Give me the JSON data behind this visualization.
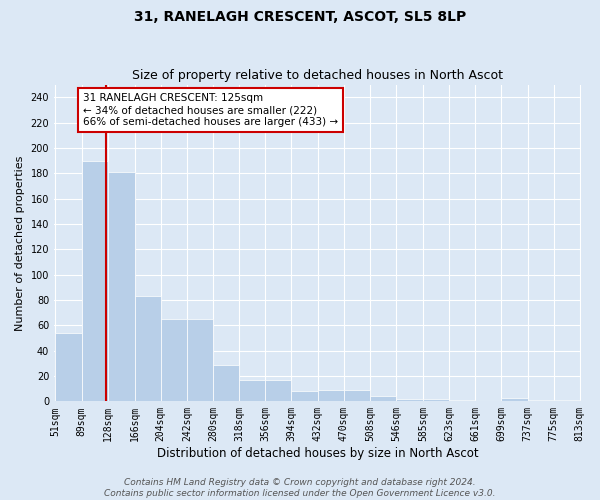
{
  "title": "31, RANELAGH CRESCENT, ASCOT, SL5 8LP",
  "subtitle": "Size of property relative to detached houses in North Ascot",
  "xlabel": "Distribution of detached houses by size in North Ascot",
  "ylabel": "Number of detached properties",
  "bar_values": [
    54,
    190,
    181,
    83,
    65,
    65,
    29,
    17,
    17,
    8,
    9,
    9,
    4,
    2,
    2,
    1,
    0,
    3,
    1,
    1
  ],
  "bar_labels": [
    "51sqm",
    "89sqm",
    "128sqm",
    "166sqm",
    "204sqm",
    "242sqm",
    "280sqm",
    "318sqm",
    "356sqm",
    "394sqm",
    "432sqm",
    "470sqm",
    "508sqm",
    "546sqm",
    "585sqm",
    "623sqm",
    "661sqm",
    "699sqm",
    "737sqm",
    "775sqm",
    "813sqm"
  ],
  "bar_edges": [
    51,
    89,
    128,
    166,
    204,
    242,
    280,
    318,
    356,
    394,
    432,
    470,
    508,
    546,
    585,
    623,
    661,
    699,
    737,
    775,
    813
  ],
  "bar_color": "#b8cfe8",
  "bar_edge_color": "#b8cfe8",
  "property_line_value": 125,
  "property_line_color": "#cc0000",
  "annotation_box_color": "#cc0000",
  "annotation_text": "31 RANELAGH CRESCENT: 125sqm\n← 34% of detached houses are smaller (222)\n66% of semi-detached houses are larger (433) →",
  "ylim": [
    0,
    250
  ],
  "yticks": [
    0,
    20,
    40,
    60,
    80,
    100,
    120,
    140,
    160,
    180,
    200,
    220,
    240
  ],
  "footer": "Contains HM Land Registry data © Crown copyright and database right 2024.\nContains public sector information licensed under the Open Government Licence v3.0.",
  "bg_color": "#dce8f5",
  "plot_bg_color": "#dce8f5",
  "grid_color": "#ffffff",
  "title_fontsize": 10,
  "subtitle_fontsize": 9,
  "xlabel_fontsize": 8.5,
  "ylabel_fontsize": 8,
  "tick_fontsize": 7,
  "annotation_fontsize": 7.5,
  "footer_fontsize": 6.5
}
